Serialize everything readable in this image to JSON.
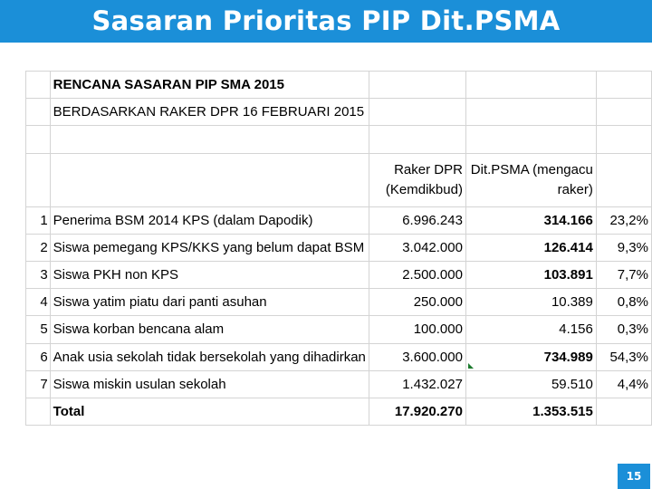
{
  "slide": {
    "title": "Sasaran Prioritas PIP Dit.PSMA",
    "page_number": "15",
    "accent_color": "#1b8fd8"
  },
  "sheet": {
    "title": "RENCANA SASARAN PIP SMA 2015",
    "subtitle": "BERDASARKAN RAKER DPR 16 FEBRUARI 2015",
    "header": {
      "raker_line1": "Raker DPR",
      "raker_line2": "(Kemdikbud)",
      "psma_line1": "Dit.PSMA (mengacu",
      "psma_line2": "raker)"
    },
    "rows": [
      {
        "no": "1",
        "label": "Penerima BSM 2014 KPS (dalam Dapodik)",
        "raker": "6.996.243",
        "psma": "314.166",
        "pct": "23,2%"
      },
      {
        "no": "2",
        "label": "Siswa pemegang KPS/KKS yang belum dapat BSM",
        "raker": "3.042.000",
        "psma": "126.414",
        "pct": "9,3%"
      },
      {
        "no": "3",
        "label": "Siswa PKH non KPS",
        "raker": "2.500.000",
        "psma": "103.891",
        "pct": "7,7%"
      },
      {
        "no": "4",
        "label": "Siswa yatim piatu dari panti asuhan",
        "raker": "250.000",
        "psma": "10.389",
        "pct": "0,8%"
      },
      {
        "no": "5",
        "label": "Siswa korban bencana alam",
        "raker": "100.000",
        "psma": "4.156",
        "pct": "0,3%"
      },
      {
        "no": "6",
        "label": "Anak usia sekolah tidak bersekolah yang dihadirkan",
        "raker": "3.600.000",
        "psma": "734.989",
        "pct": "54,3%"
      },
      {
        "no": "7",
        "label": "Siswa miskin usulan sekolah",
        "raker": "1.432.027",
        "psma": "59.510",
        "pct": "4,4%"
      }
    ],
    "total": {
      "label": "Total",
      "raker": "17.920.270",
      "psma": "1.353.515"
    }
  }
}
